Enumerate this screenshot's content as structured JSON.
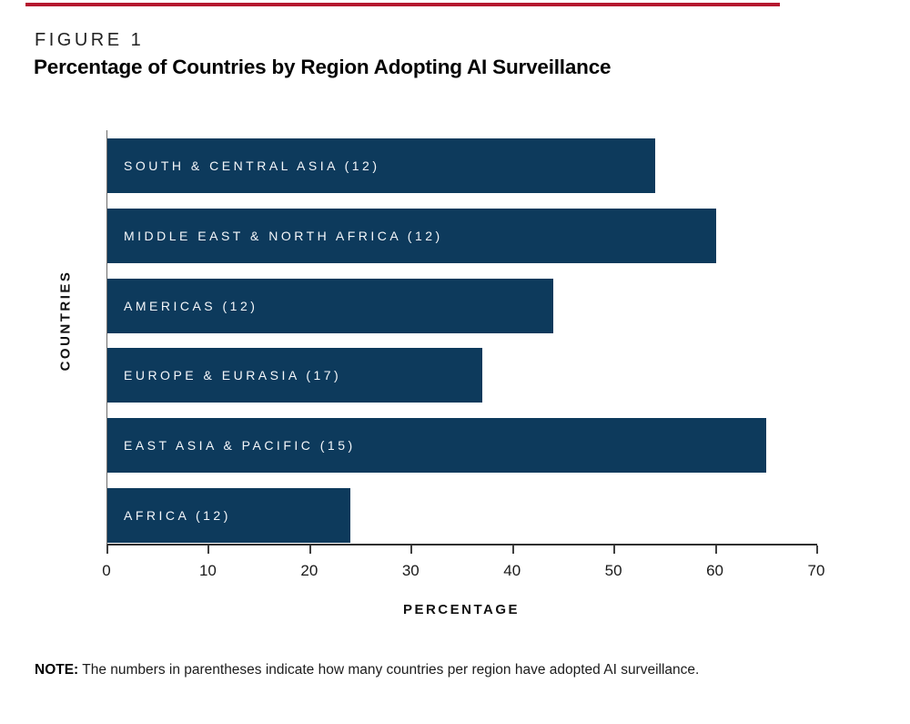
{
  "figure": {
    "label": "FIGURE 1",
    "title": "Percentage of Countries by Region Adopting AI Surveillance"
  },
  "accent_color": "#b5182f",
  "chart_data": {
    "type": "bar",
    "orientation": "horizontal",
    "title": "Percentage of Countries by Region Adopting AI Surveillance",
    "categories": [
      "SOUTH & CENTRAL ASIA (12)",
      "MIDDLE EAST & NORTH AFRICA (12)",
      "AMERICAS (12)",
      "EUROPE & EURASIA (17)",
      "EAST ASIA & PACIFIC (15)",
      "AFRICA (12)"
    ],
    "values": [
      54,
      60,
      44,
      37,
      65,
      24
    ],
    "xlabel": "PERCENTAGE",
    "ylabel": "COUNTRIES",
    "xlim": [
      0,
      70
    ],
    "xticks": [
      0,
      10,
      20,
      30,
      40,
      50,
      60,
      70
    ],
    "bar_color": "#0d3a5c",
    "label_color": "#f4f7fa",
    "grid": false,
    "legend_position": "none"
  },
  "note": {
    "label": "NOTE:",
    "text": " The numbers in parentheses indicate how many countries per region have adopted AI surveillance."
  }
}
